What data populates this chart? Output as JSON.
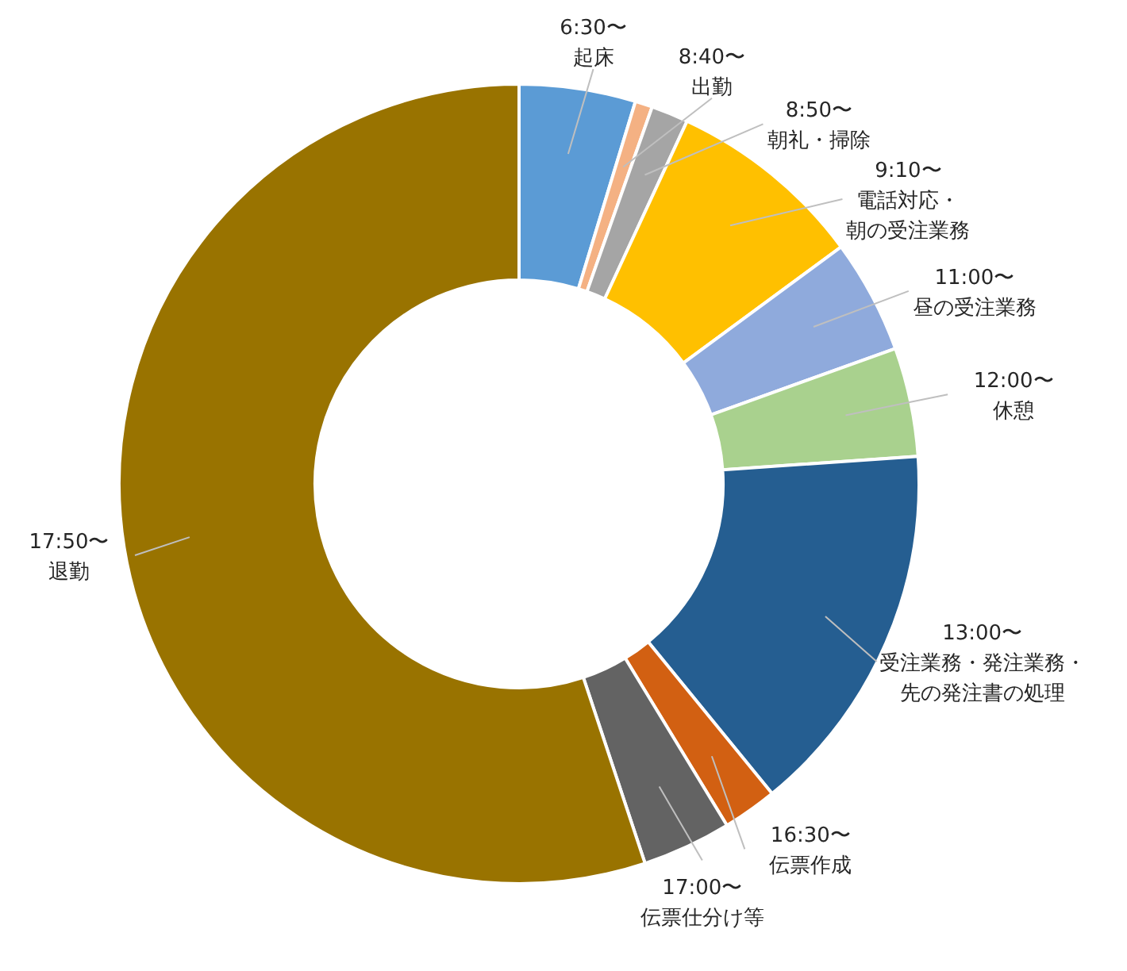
{
  "chart_data": {
    "type": "donut",
    "categories": [
      "6:30〜起床",
      "8:40〜出勤",
      "8:50〜朝礼・掃除",
      "9:10〜電話対応・朝の受注業務",
      "11:00〜昼の受注業務",
      "12:00〜休憩",
      "13:00〜受注業務・発注業務・先の発注書の処理",
      "16:30〜伝票作成",
      "17:00〜伝票仕分け等",
      "17:50〜退勤"
    ],
    "values": [
      4.7,
      0.7,
      1.5,
      8,
      4.6,
      4.4,
      15.2,
      2.2,
      3.6,
      55.1
    ],
    "colors": [
      "#5b9bd5",
      "#f4b183",
      "#a5a5a5",
      "#ffc000",
      "#8faadc",
      "#a9d18e",
      "#255e91",
      "#d26012",
      "#636363",
      "#997300"
    ]
  }
}
